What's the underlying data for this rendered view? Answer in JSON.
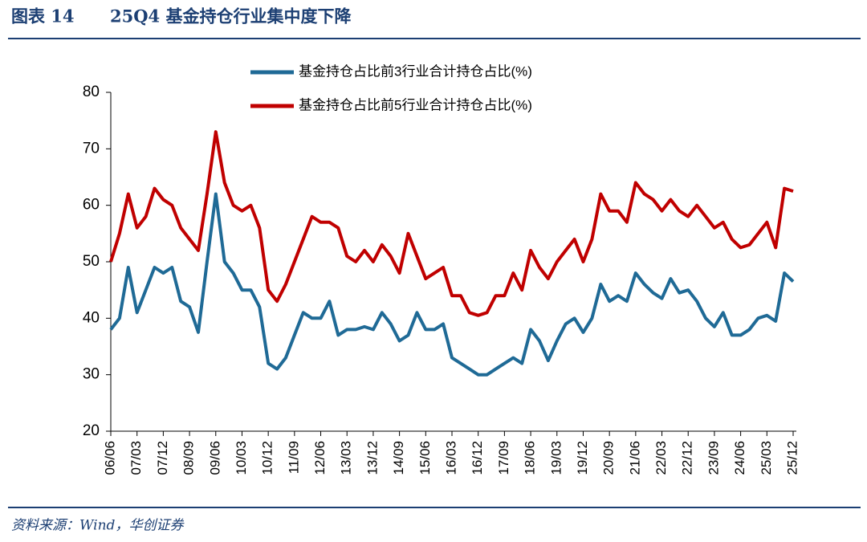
{
  "chart_data": {
    "type": "line",
    "figure_label": "图表 14",
    "title": "25Q4 基金持仓行业集中度下降",
    "source": "资料来源：Wind，华创证券",
    "categories": [
      "06/06",
      null,
      null,
      "07/03",
      null,
      null,
      "07/12",
      null,
      null,
      "08/09",
      null,
      null,
      "09/06",
      null,
      null,
      "10/03",
      null,
      null,
      "10/12",
      null,
      null,
      "11/09",
      null,
      null,
      "12/06",
      null,
      null,
      "13/03",
      null,
      null,
      "13/12",
      null,
      null,
      "14/09",
      null,
      null,
      "15/06",
      null,
      null,
      "16/03",
      null,
      null,
      "16/12",
      null,
      null,
      "17/09",
      null,
      null,
      "18/06",
      null,
      null,
      "19/03",
      null,
      null,
      "19/12",
      null,
      null,
      "20/09",
      null,
      null,
      "21/06",
      null,
      null,
      "22/03",
      null,
      null,
      "22/12",
      null,
      null,
      "23/09",
      null,
      null,
      "24/06",
      null,
      null,
      "25/03",
      null,
      null,
      "25/12"
    ],
    "series": [
      {
        "name": "基金持仓占比前3行业合计持仓占比(%)",
        "color": "#1f6a96",
        "values": [
          38,
          40,
          49,
          41,
          45,
          49,
          48,
          49,
          43,
          42,
          37.5,
          50,
          62,
          50,
          48,
          45,
          45,
          42,
          32,
          31,
          33,
          37,
          41,
          40,
          40,
          43,
          37,
          38,
          38,
          38.5,
          38,
          41,
          39,
          36,
          37,
          41,
          38,
          38,
          39,
          33,
          32,
          31,
          30,
          30,
          31,
          32,
          33,
          32,
          38,
          36,
          32.5,
          36,
          39,
          40,
          37.5,
          40,
          46,
          43,
          44,
          43,
          48,
          46,
          44.5,
          43.5,
          47,
          44.5,
          45,
          43,
          40,
          38.5,
          41,
          37,
          37,
          38,
          40,
          40.5,
          39.5,
          48,
          46.5
        ]
      },
      {
        "name": "基金持仓占比前5行业合计持仓占比(%)",
        "color": "#c00000",
        "values": [
          50,
          55,
          62,
          56,
          58,
          63,
          61,
          60,
          56,
          54,
          52,
          62,
          73,
          64,
          60,
          59,
          60,
          56,
          45,
          43,
          46,
          50,
          54,
          58,
          57,
          57,
          56,
          51,
          50,
          52,
          50,
          53,
          51,
          48,
          55,
          51,
          47,
          48,
          49,
          44,
          44,
          41,
          40.5,
          41,
          44,
          44,
          48,
          45,
          52,
          49,
          47,
          50,
          52,
          54,
          50,
          54,
          62,
          59,
          59,
          57,
          64,
          62,
          61,
          59,
          61,
          59,
          58,
          60,
          58,
          56,
          57,
          54,
          52.5,
          53,
          55,
          57,
          52.5,
          63,
          62.5
        ]
      }
    ],
    "ylim": [
      20,
      80
    ],
    "yticks": [
      20,
      30,
      40,
      50,
      60,
      70,
      80
    ],
    "grid": false
  }
}
